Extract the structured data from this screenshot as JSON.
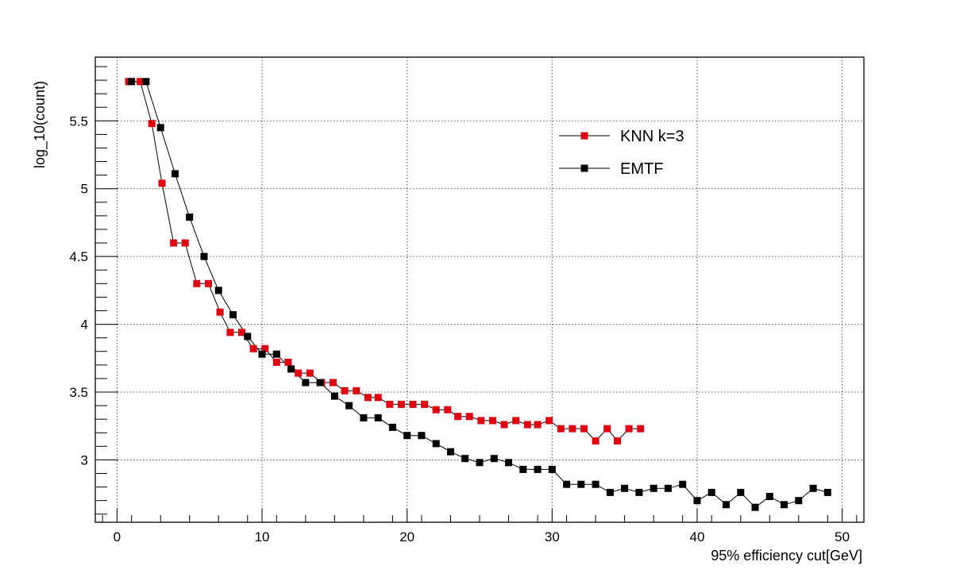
{
  "chart_data": {
    "type": "line",
    "title": "",
    "xlabel": "95% efficiency cut[GeV]",
    "ylabel": "log_10(count)",
    "xlim": [
      -1.5,
      51.5
    ],
    "ylim": [
      2.54,
      5.97
    ],
    "x_ticks": [
      0,
      10,
      20,
      30,
      40,
      50
    ],
    "x_tick_labels": [
      "0",
      "10",
      "20",
      "30",
      "40",
      "50"
    ],
    "y_ticks": [
      3,
      3.5,
      4,
      4.5,
      5,
      5.5
    ],
    "y_tick_labels": [
      "3",
      "3.5",
      "4",
      "4.5",
      "5",
      "5.5"
    ],
    "grid": true,
    "legend_position": "top-right",
    "series": [
      {
        "name": "KNN k=3",
        "color": "#e0000f",
        "marker": "square",
        "x": [
          0.8,
          1.6,
          2.4,
          3.1,
          3.9,
          4.7,
          5.5,
          6.3,
          7.1,
          7.8,
          8.6,
          9.4,
          10.2,
          11.0,
          11.8,
          12.5,
          13.3,
          14.1,
          14.9,
          15.7,
          16.5,
          17.3,
          18.0,
          18.8,
          19.6,
          20.4,
          21.2,
          22.0,
          22.8,
          23.5,
          24.3,
          25.1,
          25.9,
          26.7,
          27.5,
          28.3,
          29.0,
          29.8,
          30.6,
          31.4,
          32.2,
          33.0,
          33.8,
          34.5,
          35.3,
          36.1
        ],
        "y": [
          5.79,
          5.79,
          5.48,
          5.04,
          4.6,
          4.6,
          4.3,
          4.3,
          4.09,
          3.94,
          3.94,
          3.82,
          3.82,
          3.72,
          3.72,
          3.64,
          3.64,
          3.57,
          3.57,
          3.51,
          3.51,
          3.46,
          3.46,
          3.41,
          3.41,
          3.41,
          3.41,
          3.37,
          3.37,
          3.32,
          3.32,
          3.29,
          3.29,
          3.26,
          3.29,
          3.26,
          3.26,
          3.29,
          3.23,
          3.23,
          3.23,
          3.14,
          3.23,
          3.14,
          3.23,
          3.23
        ]
      },
      {
        "name": "EMTF",
        "color": "#000000",
        "marker": "square",
        "x": [
          1,
          2,
          3,
          4,
          5,
          6,
          7,
          8,
          9,
          10,
          11,
          12,
          13,
          14,
          15,
          16,
          17,
          18,
          19,
          20,
          21,
          22,
          23,
          24,
          25,
          26,
          27,
          28,
          29,
          30,
          31,
          32,
          33,
          34,
          35,
          36,
          37,
          38,
          39,
          40,
          41,
          42,
          43,
          44,
          45,
          46,
          47,
          48,
          49
        ],
        "y": [
          5.79,
          5.79,
          5.45,
          5.11,
          4.79,
          4.5,
          4.25,
          4.07,
          3.91,
          3.78,
          3.78,
          3.67,
          3.57,
          3.57,
          3.47,
          3.4,
          3.31,
          3.31,
          3.24,
          3.18,
          3.18,
          3.12,
          3.06,
          3.01,
          2.98,
          3.01,
          2.98,
          2.93,
          2.93,
          2.93,
          2.82,
          2.82,
          2.82,
          2.76,
          2.79,
          2.76,
          2.79,
          2.79,
          2.82,
          2.7,
          2.76,
          2.67,
          2.76,
          2.65,
          2.73,
          2.67,
          2.7,
          2.79,
          2.76
        ]
      }
    ]
  }
}
